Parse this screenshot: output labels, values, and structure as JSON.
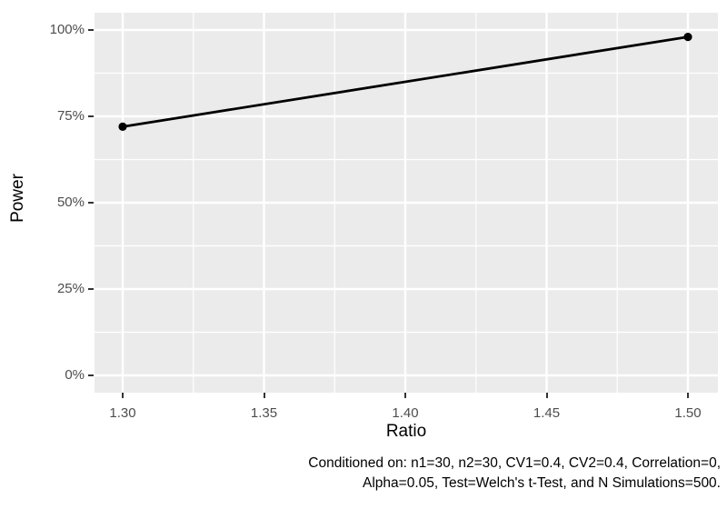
{
  "figure": {
    "y_axis_title": "Power",
    "x_axis_title": "Ratio",
    "caption_line1": "Conditioned on: n1=30, n2=30, CV1=0.4, CV2=0.4, Correlation=0,",
    "caption_line2": "Alpha=0.05, Test=Welch's t-Test, and N Simulations=500."
  },
  "chart_data": {
    "type": "line",
    "title": "",
    "xlabel": "Ratio",
    "ylabel": "Power",
    "x": [
      1.3,
      1.5
    ],
    "y_power_percent": [
      72,
      98
    ],
    "x_ticks": [
      1.3,
      1.35,
      1.4,
      1.45,
      1.5
    ],
    "x_tick_labels": [
      "1.30",
      "1.35",
      "1.40",
      "1.45",
      "1.50"
    ],
    "x_minor_ticks": [
      1.325,
      1.375,
      1.425,
      1.475
    ],
    "y_ticks": [
      0,
      25,
      50,
      75,
      100
    ],
    "y_tick_labels": [
      "0%",
      "25%",
      "50%",
      "75%",
      "100%"
    ],
    "y_minor_ticks": [
      12.5,
      37.5,
      62.5,
      87.5
    ],
    "xlim": [
      1.3,
      1.5
    ],
    "ylim_percent": [
      0,
      100
    ],
    "grid": true,
    "legend": false,
    "caption": "Conditioned on: n1=30, n2=30, CV1=0.4, CV2=0.4, Correlation=0, Alpha=0.05, Test=Welch's t-Test, and N Simulations=500.",
    "colors": {
      "panel_background": "#EBEBEB",
      "grid_line": "#FFFFFF",
      "series_line": "#000000",
      "point": "#000000",
      "tick_label": "#4D4D4D",
      "axis_title": "#000000",
      "tick_mark": "#333333",
      "caption_text": "#000000"
    }
  }
}
